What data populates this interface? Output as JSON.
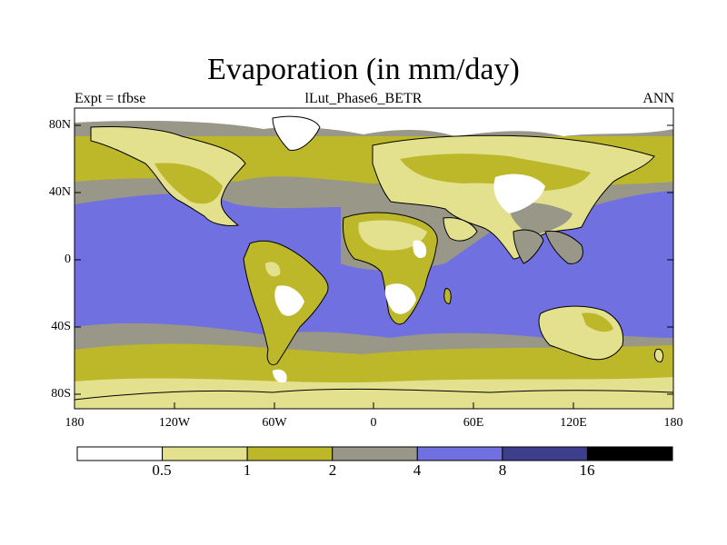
{
  "title": "Evaporation (in mm/day)",
  "subtitle_left": "Expt = tfbse",
  "subtitle_center": "lLut_Phase6_BETR",
  "subtitle_right": "ANN",
  "lat_labels": [
    "80N",
    "40N",
    "0",
    "40S",
    "80S"
  ],
  "lon_labels": [
    "180",
    "120W",
    "60W",
    "0",
    "60E",
    "120E",
    "180"
  ],
  "colorbar": {
    "labels": [
      "0.5",
      "1",
      "2",
      "4",
      "8",
      "16"
    ],
    "colors": [
      "#ffffff",
      "#e3e08e",
      "#bdb82a",
      "#999788",
      "#7070e0",
      "#3e3e8e",
      "#000000"
    ]
  },
  "map_colors": {
    "land_low": "#e3e08e",
    "land_mid": "#bdb82a",
    "transition": "#999788",
    "tropical_ocean": "#7070e0",
    "polar": "#ffffff",
    "coast": "#000000"
  }
}
